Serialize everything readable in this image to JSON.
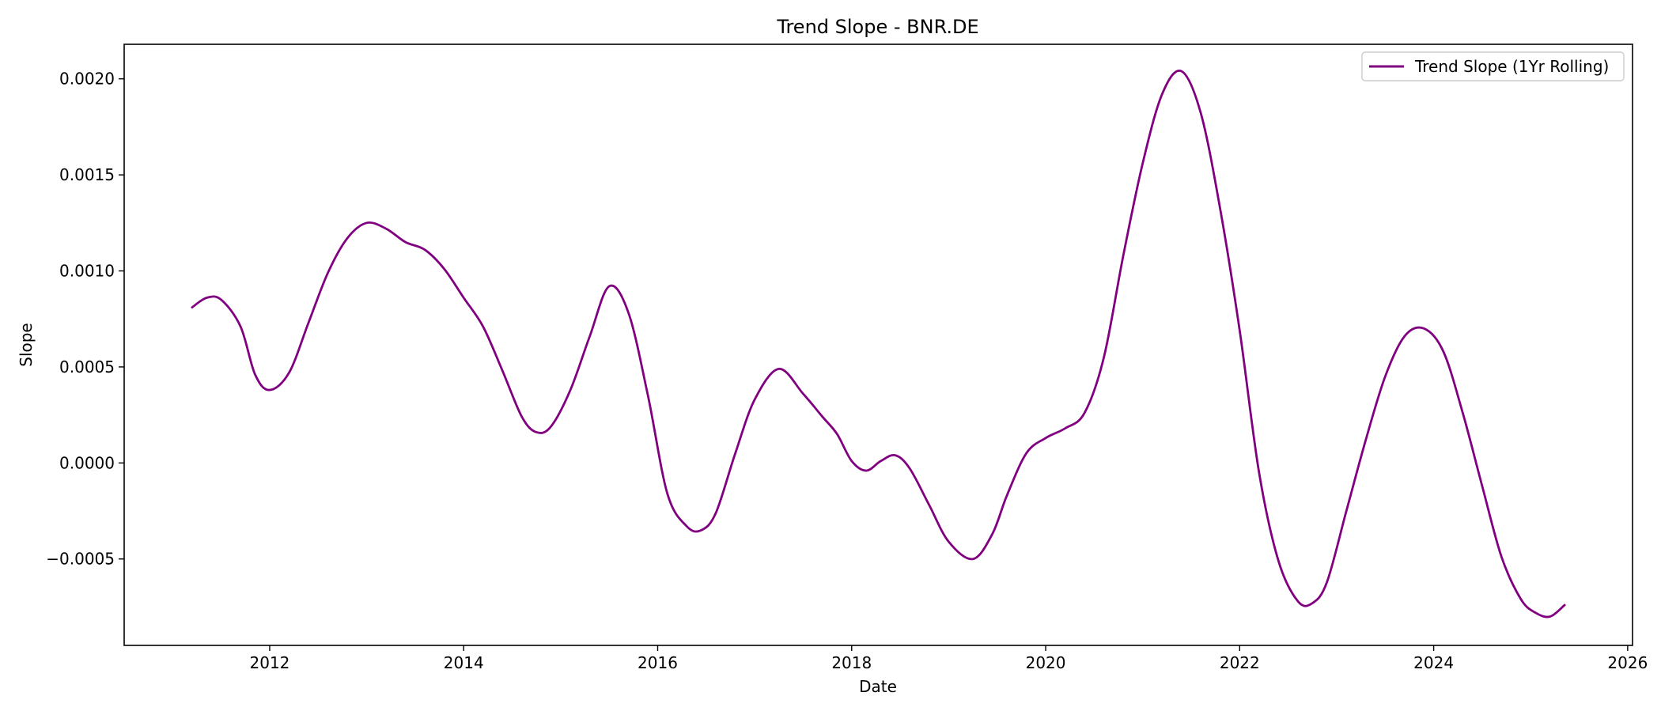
{
  "chart_data": {
    "type": "line",
    "title": "Trend Slope - BNR.DE",
    "xlabel": "Date",
    "ylabel": "Slope",
    "xlim": [
      2010.5,
      2026.05
    ],
    "ylim": [
      -0.00095,
      0.00218
    ],
    "x_ticks": [
      2012,
      2014,
      2016,
      2018,
      2020,
      2022,
      2024,
      2026
    ],
    "x_tick_labels": [
      "2012",
      "2014",
      "2016",
      "2018",
      "2020",
      "2022",
      "2024",
      "2026"
    ],
    "y_ticks": [
      -0.0005,
      0.0,
      0.0005,
      0.001,
      0.0015,
      0.002
    ],
    "y_tick_labels": [
      "−0.0005",
      "0.0000",
      "0.0005",
      "0.0010",
      "0.0015",
      "0.0020"
    ],
    "grid": false,
    "legend_position": "top-right",
    "colors": {
      "series": "#800080"
    },
    "series": [
      {
        "name": "Trend Slope (1Yr Rolling)",
        "x": [
          2011.2,
          2011.35,
          2011.5,
          2011.7,
          2011.85,
          2012.0,
          2012.2,
          2012.4,
          2012.6,
          2012.8,
          2013.0,
          2013.2,
          2013.4,
          2013.6,
          2013.8,
          2014.0,
          2014.2,
          2014.4,
          2014.6,
          2014.75,
          2014.9,
          2015.1,
          2015.3,
          2015.5,
          2015.7,
          2015.9,
          2016.1,
          2016.3,
          2016.45,
          2016.6,
          2016.8,
          2017.0,
          2017.25,
          2017.5,
          2017.7,
          2017.85,
          2018.0,
          2018.15,
          2018.3,
          2018.45,
          2018.6,
          2018.8,
          2019.0,
          2019.25,
          2019.45,
          2019.6,
          2019.8,
          2020.0,
          2020.2,
          2020.4,
          2020.6,
          2020.8,
          2021.0,
          2021.2,
          2021.4,
          2021.6,
          2021.8,
          2022.0,
          2022.2,
          2022.4,
          2022.6,
          2022.75,
          2022.9,
          2023.1,
          2023.3,
          2023.5,
          2023.7,
          2023.9,
          2024.1,
          2024.3,
          2024.5,
          2024.7,
          2024.9,
          2025.05,
          2025.2,
          2025.35
        ],
        "y": [
          0.00081,
          0.00086,
          0.00085,
          0.00071,
          0.00046,
          0.00038,
          0.00047,
          0.00073,
          0.00099,
          0.00117,
          0.00125,
          0.00122,
          0.00115,
          0.00111,
          0.00101,
          0.00086,
          0.00071,
          0.00048,
          0.00024,
          0.00016,
          0.00019,
          0.00038,
          0.00066,
          0.00092,
          0.00078,
          0.00035,
          -0.00016,
          -0.00033,
          -0.00035,
          -0.00026,
          5e-05,
          0.00033,
          0.00049,
          0.00036,
          0.00024,
          0.00015,
          1e-05,
          -4e-05,
          1e-05,
          4e-05,
          -3e-05,
          -0.00022,
          -0.00041,
          -0.0005,
          -0.00037,
          -0.00017,
          5e-05,
          0.00013,
          0.00018,
          0.00026,
          0.00055,
          0.00108,
          0.00156,
          0.00192,
          0.00204,
          0.00182,
          0.00132,
          0.00069,
          -5e-05,
          -0.00051,
          -0.00072,
          -0.00073,
          -0.00062,
          -0.00025,
          0.00012,
          0.00045,
          0.00066,
          0.0007,
          0.00058,
          0.00026,
          -0.00012,
          -0.00049,
          -0.00071,
          -0.00078,
          -0.0008,
          -0.00074
        ]
      }
    ]
  }
}
